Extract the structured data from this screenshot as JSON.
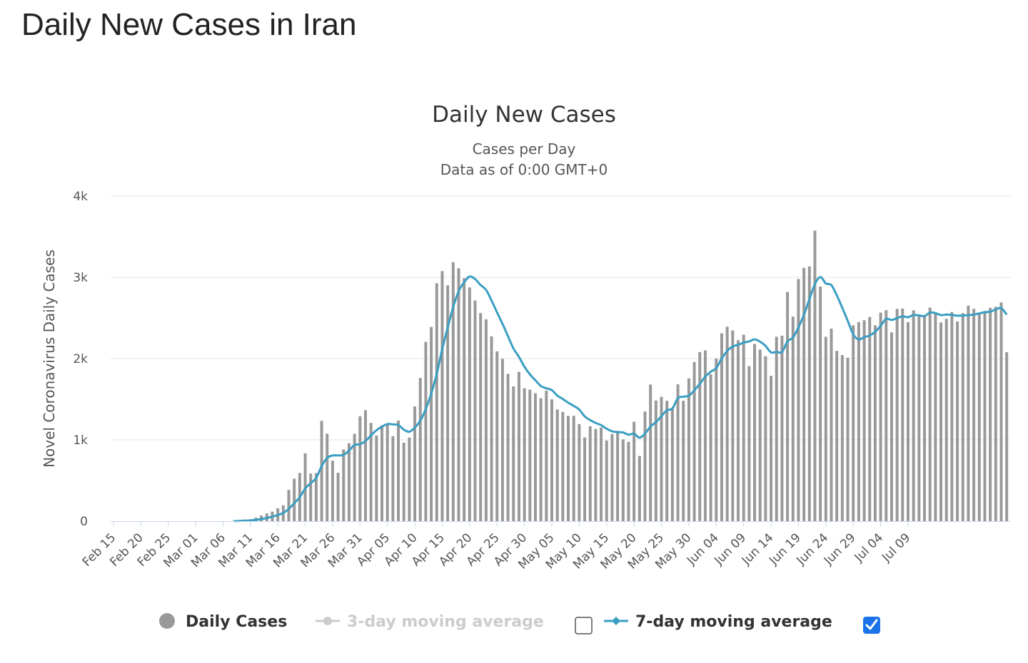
{
  "page": {
    "title": "Daily New Cases in Iran"
  },
  "chart_data": {
    "type": "bar",
    "title": "Daily New Cases",
    "subtitle": "Cases per Day",
    "subtitle2": "Data as of 0:00 GMT+0",
    "ylabel": "Novel Coronavirus Daily Cases",
    "xlabel": "",
    "ylim": [
      0,
      4000
    ],
    "yticks": [
      0,
      1000,
      2000,
      3000,
      4000
    ],
    "ytick_labels": [
      "0",
      "1k",
      "2k",
      "3k",
      "4k"
    ],
    "start_date": "Feb 15",
    "xtick_labels": [
      "Feb 15",
      "Feb 20",
      "Feb 25",
      "Mar 01",
      "Mar 06",
      "Mar 11",
      "Mar 16",
      "Mar 21",
      "Mar 26",
      "Mar 31",
      "Apr 05",
      "Apr 10",
      "Apr 15",
      "Apr 20",
      "Apr 25",
      "Apr 30",
      "May 05",
      "May 10",
      "May 15",
      "May 20",
      "May 25",
      "May 30",
      "Jun 04",
      "Jun 09",
      "Jun 14",
      "Jun 19",
      "Jun 24",
      "Jun 29",
      "Jul 04",
      "Jul 09"
    ],
    "grid": true,
    "legend_position": "bottom-center",
    "colors": {
      "bars": "#999999",
      "ma7": "#3a9ec2",
      "ma3": "#cccccc",
      "grid": "#e6e6e6",
      "checkbox": "#1a73e8"
    },
    "series": [
      {
        "name": "Daily Cases",
        "type": "bar",
        "values": [
          0,
          0,
          0,
          0,
          0,
          0,
          0,
          0,
          0,
          0,
          0,
          0,
          0,
          0,
          0,
          0,
          0,
          0,
          0,
          0,
          0,
          0,
          5,
          13,
          21,
          24,
          43,
          70,
          95,
          117,
          158,
          195,
          385,
          523,
          593,
          835,
          586,
          591,
          1234,
          1076,
          743,
          595,
          881,
          958,
          1075,
          1289,
          1365,
          1209,
          1053,
          1178,
          1192,
          1046,
          1237,
          966,
          1028,
          1411,
          1762,
          2206,
          2389,
          2926,
          3076,
          2901,
          3186,
          3111,
          2988,
          2875,
          2715,
          2560,
          2483,
          2274,
          2089,
          1997,
          1812,
          1657,
          1837,
          1634,
          1617,
          1574,
          1512,
          1606,
          1499,
          1374,
          1343,
          1294,
          1297,
          1194,
          1030,
          1168,
          1134,
          1153,
          991,
          1073,
          1112,
          1006,
          976,
          1223,
          802,
          1349,
          1680,
          1485,
          1529,
          1481,
          1383,
          1683,
          1481,
          1757,
          1958,
          2080,
          2102,
          1806,
          2001,
          2311,
          2392,
          2346,
          2226,
          2294,
          1907,
          2180,
          2111,
          2029,
          1787,
          2269,
          2282,
          2819,
          2516,
          2979,
          3117,
          3134,
          3574,
          2886,
          2269,
          2369,
          2095,
          2043,
          2011,
          2410,
          2449,
          2472,
          2512,
          2410,
          2566,
          2596,
          2322,
          2612,
          2615,
          2449,
          2595,
          2531,
          2536,
          2628,
          2563,
          2445,
          2489,
          2573,
          2457,
          2560,
          2652,
          2613,
          2549,
          2586,
          2625,
          2637,
          2691,
          2079
        ],
        "color": "#999999"
      },
      {
        "name": "3-day moving average",
        "type": "line",
        "visible": false,
        "color": "#cccccc"
      },
      {
        "name": "7-day moving average",
        "type": "line",
        "visible": true,
        "color": "#3a9ec2"
      }
    ]
  },
  "legend": {
    "items": [
      {
        "label": "Daily Cases",
        "active": true
      },
      {
        "label": "3-day moving average",
        "active": false,
        "checked": false
      },
      {
        "label": "7-day moving average",
        "active": true,
        "checked": true
      }
    ]
  }
}
